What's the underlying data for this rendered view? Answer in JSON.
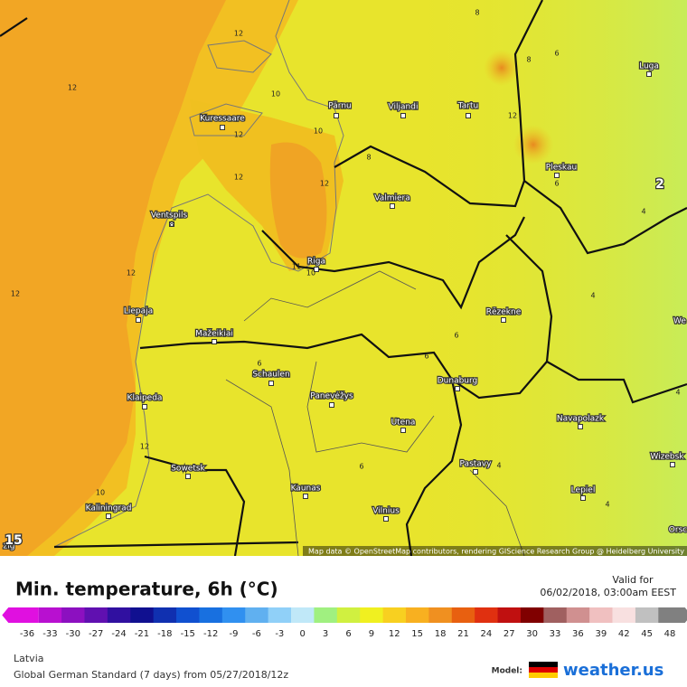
{
  "map": {
    "cities": [
      "Pärnu",
      "Viljandi",
      "Tartu",
      "Kuressaare",
      "Pleskau",
      "Valmiera",
      "Ventspils",
      "Riga",
      "Luga",
      "Rēzekne",
      "Liepaja",
      "Mažeikiai",
      "Schaulen",
      "Dunaburg",
      "Klaipeda",
      "Panevėžys",
      "Utena",
      "Navapolazk",
      "Wizebsk",
      "Sowetsk",
      "Pastavy",
      "Kaunas",
      "Lepiel",
      "Kaliningrad",
      "Vilnius",
      "We",
      "Orsc",
      "zig"
    ],
    "contour_labels": [
      12,
      12,
      10,
      12,
      10,
      12,
      12,
      8,
      8,
      8,
      6,
      12,
      6,
      4,
      4,
      12,
      12,
      11,
      10,
      6,
      6,
      6,
      6,
      4,
      4,
      4,
      12,
      10,
      8
    ],
    "extreme_labels": [
      15,
      2
    ],
    "attribution": "Map data © OpenStreetMap contributors, rendering GIScience Research Group @ Heidelberg University"
  },
  "legend": {
    "title": "Min. temperature, 6h (°C)",
    "valid_label": "Valid for",
    "valid_time": "06/02/2018, 03:00am EEST",
    "ticks": [
      -36,
      -33,
      -30,
      -27,
      -24,
      -21,
      -18,
      -15,
      -12,
      -9,
      -6,
      -3,
      0,
      3,
      6,
      9,
      12,
      15,
      18,
      21,
      24,
      27,
      30,
      33,
      36,
      39,
      42,
      45,
      48
    ],
    "colors": [
      "#e010e0",
      "#b810d0",
      "#8c10c0",
      "#6010b0",
      "#3010a0",
      "#101090",
      "#1030b0",
      "#1050d0",
      "#1870e0",
      "#3090f0",
      "#60b0f0",
      "#90d0f8",
      "#c0e8f8",
      "#a0f080",
      "#d0f040",
      "#f0f020",
      "#f8d020",
      "#f8b020",
      "#f09020",
      "#e86010",
      "#e03010",
      "#c01010",
      "#800000",
      "#a06060",
      "#d09090",
      "#f0c0c0",
      "#f8e0e0",
      "#c0c0c0",
      "#808080"
    ]
  },
  "footer": {
    "region": "Latvia",
    "model_run": "Global German Standard (7 days) from 05/27/2018/12z",
    "model_label": "Model:",
    "brand": "weather.us"
  }
}
